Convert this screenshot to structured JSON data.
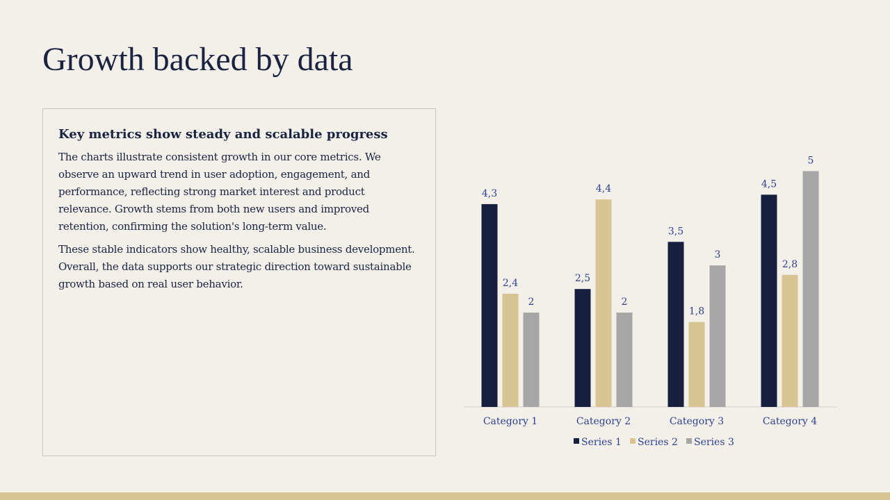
{
  "slide": {
    "title": "Growth backed by data"
  },
  "panel": {
    "heading": "Key metrics show steady and scalable progress",
    "paragraphs": [
      "The charts illustrate consistent growth in our core metrics. We observe an upward trend in user adoption, engagement, and performance, reflecting strong market interest and product relevance. Growth stems from both new users and improved retention, confirming the solution's long-term value.",
      "These stable indicators show healthy, scalable business development. Overall, the data supports our strategic direction toward sustainable growth based on real user behavior."
    ]
  },
  "chart_data": {
    "type": "bar",
    "categories": [
      "Category 1",
      "Category 2",
      "Category 3",
      "Category 4"
    ],
    "series": [
      {
        "name": "Series 1",
        "values": [
          4.3,
          2.5,
          3.5,
          4.5
        ],
        "labels": [
          "4,3",
          "2,5",
          "3,5",
          "4,5"
        ],
        "color": "#161f3e"
      },
      {
        "name": "Series 2",
        "values": [
          2.4,
          4.4,
          1.8,
          2.8
        ],
        "labels": [
          "2,4",
          "4,4",
          "1,8",
          "2,8"
        ],
        "color": "#d9c593"
      },
      {
        "name": "Series 3",
        "values": [
          2,
          2,
          3,
          5
        ],
        "labels": [
          "2",
          "2",
          "3",
          "5"
        ],
        "color": "#a6a6a6"
      }
    ],
    "ylim": [
      0,
      5.3
    ],
    "grid": false,
    "legend_position": "bottom",
    "label_color": "#2e3f8f",
    "axis_color": "#d0cdc8"
  },
  "footer": {
    "color": "#d8c594"
  }
}
